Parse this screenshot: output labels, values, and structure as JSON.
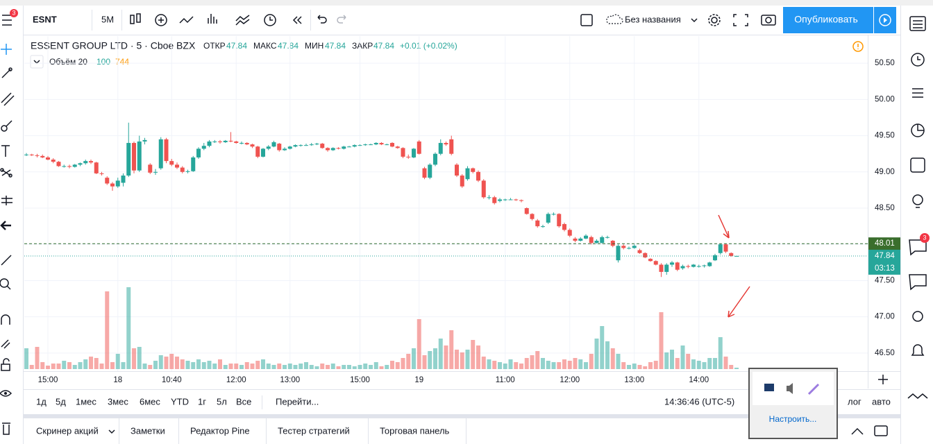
{
  "toolbar": {
    "symbol": "ESNT",
    "interval": "5M",
    "layout_name": "Без названия",
    "publish": "Опубликовать"
  },
  "badges": {
    "left": "3",
    "right": "3"
  },
  "legend": {
    "name": "ESSENT GROUP LTD · 5 · Cboe BZX",
    "open_label": "ОТКР",
    "open": "47.84",
    "high_label": "МАКС",
    "high": "47.84",
    "low_label": "МИН",
    "low": "47.84",
    "close_label": "ЗАКР",
    "close": "47.84",
    "change": "+0.01 (+0.02%)",
    "volume_name": "Объём 20",
    "volume_value": "100",
    "volume_ma": "744"
  },
  "chart_data": {
    "type": "candlestick",
    "up_color": "#26a69a",
    "down_color": "#ef5350",
    "ylim": [
      46.25,
      50.875
    ],
    "yticks": [
      {
        "value": 46.5,
        "label": "46.50"
      },
      {
        "value": 47,
        "label": "47.00"
      },
      {
        "value": 47.5,
        "label": "47.50"
      },
      {
        "value": 48,
        "label": "48.00"
      },
      {
        "value": 48.5,
        "label": "48.50"
      },
      {
        "value": 49,
        "label": "49.00"
      },
      {
        "value": 49.5,
        "label": "49.50"
      },
      {
        "value": 50,
        "label": "50.00"
      },
      {
        "value": 50.5,
        "label": "50.50"
      }
    ],
    "grid": true,
    "volume_ylim": [
      0,
      130
    ],
    "high_line": {
      "value": 48.01,
      "label": "48.01"
    },
    "last_price": {
      "value": 47.84,
      "label": "47.84"
    },
    "countdown": "03:13",
    "categories": [
      null,
      null,
      null,
      null,
      "15:00",
      null,
      null,
      null,
      null,
      null,
      null,
      null,
      null,
      null,
      null,
      null,
      null,
      "18",
      null,
      null,
      null,
      null,
      null,
      null,
      null,
      null,
      null,
      "10:40",
      null,
      null,
      null,
      null,
      null,
      null,
      null,
      null,
      null,
      null,
      null,
      "12:00",
      null,
      null,
      null,
      null,
      null,
      null,
      null,
      null,
      null,
      "13:00",
      null,
      null,
      null,
      null,
      null,
      null,
      null,
      null,
      null,
      null,
      null,
      null,
      "15:00",
      null,
      null,
      null,
      null,
      null,
      null,
      null,
      null,
      null,
      null,
      "19",
      null,
      null,
      null,
      null,
      null,
      null,
      null,
      null,
      null,
      null,
      null,
      null,
      null,
      null,
      null,
      "11:00",
      null,
      null,
      null,
      null,
      null,
      null,
      null,
      null,
      null,
      null,
      null,
      "12:00",
      null,
      null,
      null,
      null,
      null,
      null,
      null,
      null,
      null,
      null,
      null,
      "13:00",
      null,
      null,
      null,
      null,
      null,
      null,
      null,
      null,
      null,
      null,
      null,
      "14:00",
      null,
      null,
      null,
      null,
      null,
      null,
      null
    ],
    "candles": [
      [
        49.24,
        49.26,
        49.22,
        49.24
      ],
      [
        49.24,
        49.25,
        49.22,
        49.23
      ],
      [
        49.23,
        49.25,
        49.2,
        49.22
      ],
      [
        49.22,
        49.24,
        49.19,
        49.2
      ],
      [
        49.2,
        49.22,
        49.16,
        49.17
      ],
      [
        49.17,
        49.19,
        49.12,
        49.14
      ],
      [
        49.14,
        49.15,
        49.07,
        49.08
      ],
      [
        49.08,
        49.1,
        49.06,
        49.08
      ],
      [
        49.08,
        49.1,
        49.05,
        49.07
      ],
      [
        49.07,
        49.11,
        49.06,
        49.1
      ],
      [
        49.1,
        49.13,
        49.08,
        49.12
      ],
      [
        49.12,
        49.17,
        49.1,
        49.15
      ],
      [
        49.15,
        49.17,
        49.11,
        49.13
      ],
      [
        49.13,
        49.14,
        48.97,
        48.98
      ],
      [
        48.98,
        49,
        48.95,
        48.97
      ],
      [
        48.92,
        48.94,
        48.82,
        48.84
      ],
      [
        48.84,
        48.86,
        48.74,
        48.8
      ],
      [
        48.8,
        48.92,
        48.78,
        48.88
      ],
      [
        48.85,
        48.98,
        48.8,
        48.95
      ],
      [
        48.95,
        49.68,
        48.93,
        49.4
      ],
      [
        49.4,
        49.42,
        48.98,
        49.02
      ],
      [
        49.02,
        49.5,
        49,
        49.42
      ],
      [
        49.42,
        49.47,
        49.38,
        49.44
      ],
      [
        49.1,
        49.12,
        48.97,
        48.99
      ],
      [
        48.99,
        49.04,
        48.96,
        49
      ],
      [
        49.05,
        49.48,
        49.03,
        49.45
      ],
      [
        49.45,
        49.47,
        49.12,
        49.15
      ],
      [
        49.15,
        49.18,
        49.08,
        49.1
      ],
      [
        49.1,
        49.13,
        49.04,
        49.06
      ],
      [
        49.06,
        49.08,
        48.98,
        49
      ],
      [
        49,
        49.03,
        48.98,
        49.01
      ],
      [
        49.01,
        49.22,
        49,
        49.2
      ],
      [
        49.2,
        49.34,
        49.18,
        49.32
      ],
      [
        49.32,
        49.4,
        49.3,
        49.36
      ],
      [
        49.36,
        49.44,
        49.34,
        49.42
      ],
      [
        49.42,
        49.44,
        49.4,
        49.42
      ],
      [
        49.42,
        49.44,
        49.39,
        49.41
      ],
      [
        49.41,
        49.44,
        49.4,
        49.43
      ],
      [
        49.43,
        49.55,
        49.41,
        49.42
      ],
      [
        49.42,
        49.43,
        49.39,
        49.4
      ],
      [
        49.4,
        49.42,
        49.38,
        49.4
      ],
      [
        49.4,
        49.41,
        49.37,
        49.38
      ],
      [
        49.38,
        49.39,
        49.33,
        49.35
      ],
      [
        49.35,
        49.36,
        49.19,
        49.21
      ],
      [
        49.21,
        49.33,
        49.2,
        49.32
      ],
      [
        49.32,
        49.37,
        49.3,
        49.35
      ],
      [
        49.35,
        49.43,
        49.34,
        49.41
      ],
      [
        49.39,
        49.4,
        49.28,
        49.3
      ],
      [
        49.3,
        49.34,
        49.29,
        49.32
      ],
      [
        49.32,
        49.36,
        49.31,
        49.35
      ],
      [
        49.35,
        49.38,
        49.34,
        49.37
      ],
      [
        49.37,
        49.38,
        49.35,
        49.37
      ],
      [
        49.37,
        49.39,
        49.36,
        49.37
      ],
      [
        49.37,
        49.4,
        49.36,
        49.38
      ],
      [
        49.38,
        49.4,
        49.37,
        49.39
      ],
      [
        49.39,
        49.4,
        49.32,
        49.33
      ],
      [
        49.33,
        49.34,
        49.28,
        49.3
      ],
      [
        49.3,
        49.34,
        49.29,
        49.33
      ],
      [
        49.33,
        49.34,
        49.31,
        49.32
      ],
      [
        49.32,
        49.36,
        49.31,
        49.35
      ],
      [
        49.35,
        49.36,
        49.34,
        49.35
      ],
      [
        49.35,
        49.38,
        49.34,
        49.37
      ],
      [
        49.37,
        49.38,
        49.36,
        49.37
      ],
      [
        49.37,
        49.39,
        49.36,
        49.38
      ],
      [
        49.38,
        49.39,
        49.37,
        49.38
      ],
      [
        49.38,
        49.41,
        49.37,
        49.4
      ],
      [
        49.4,
        49.41,
        49.37,
        49.38
      ],
      [
        49.38,
        49.39,
        49.37,
        49.38
      ],
      [
        49.4,
        49.41,
        49.34,
        49.35
      ],
      [
        49.35,
        49.36,
        49.32,
        49.33
      ],
      [
        49.33,
        49.34,
        49.19,
        49.21
      ],
      [
        49.21,
        49.24,
        49.18,
        49.2
      ],
      [
        49.2,
        49.33,
        49.19,
        49.32
      ],
      [
        49.42,
        49.44,
        49.24,
        49.25
      ],
      [
        49.05,
        49.07,
        48.9,
        48.92
      ],
      [
        48.92,
        49.12,
        48.9,
        49.1
      ],
      [
        49.1,
        49.27,
        49.08,
        49.25
      ],
      [
        49.25,
        49.45,
        49.23,
        49.4
      ],
      [
        49.4,
        49.42,
        49.36,
        49.38
      ],
      [
        49.45,
        49.5,
        49.23,
        49.25
      ],
      [
        49.1,
        49.12,
        48.93,
        48.95
      ],
      [
        48.95,
        48.97,
        48.78,
        48.8
      ],
      [
        48.9,
        49.08,
        48.88,
        49.05
      ],
      [
        49.05,
        49.06,
        48.98,
        49
      ],
      [
        49,
        49.02,
        48.86,
        48.88
      ],
      [
        48.88,
        48.9,
        48.63,
        48.65
      ],
      [
        48.65,
        48.68,
        48.62,
        48.65
      ],
      [
        48.65,
        48.67,
        48.55,
        48.57
      ],
      [
        48.6,
        48.64,
        48.58,
        48.62
      ],
      [
        48.62,
        48.63,
        48.6,
        48.62
      ],
      [
        48.62,
        48.64,
        48.61,
        48.62
      ],
      [
        48.62,
        48.63,
        48.6,
        48.61
      ],
      [
        48.61,
        48.62,
        48.58,
        48.6
      ],
      [
        48.5,
        48.51,
        48.41,
        48.42
      ],
      [
        48.42,
        48.43,
        48.33,
        48.35
      ],
      [
        48.33,
        48.35,
        48.23,
        48.25
      ],
      [
        48.25,
        48.27,
        48.23,
        48.25
      ],
      [
        48.3,
        48.44,
        48.28,
        48.42
      ],
      [
        48.42,
        48.44,
        48.4,
        48.42
      ],
      [
        48.42,
        48.43,
        48.23,
        48.25
      ],
      [
        48.28,
        48.3,
        48.18,
        48.2
      ],
      [
        48.2,
        48.22,
        48.1,
        48.12
      ],
      [
        48.08,
        48.1,
        48.03,
        48.05
      ],
      [
        48.05,
        48.1,
        48.04,
        48.08
      ],
      [
        48.08,
        48.14,
        48.07,
        48.12
      ],
      [
        48.1,
        48.12,
        48,
        48.02
      ],
      [
        48.02,
        48.07,
        48.01,
        48.05
      ],
      [
        48.02,
        48.12,
        48.01,
        48.1
      ],
      [
        48.1,
        48.12,
        48.08,
        48.1
      ],
      [
        48.05,
        48.06,
        47.96,
        47.98
      ],
      [
        47.78,
        48,
        47.75,
        47.98
      ],
      [
        47.98,
        48,
        47.93,
        47.95
      ],
      [
        47.95,
        47.97,
        47.93,
        47.95
      ],
      [
        47.95,
        48,
        47.94,
        47.98
      ],
      [
        47.92,
        47.94,
        47.87,
        47.88
      ],
      [
        47.88,
        47.89,
        47.81,
        47.82
      ],
      [
        47.8,
        47.81,
        47.76,
        47.77
      ],
      [
        47.77,
        47.78,
        47.71,
        47.72
      ],
      [
        47.72,
        47.74,
        47.55,
        47.62
      ],
      [
        47.62,
        47.74,
        47.58,
        47.72
      ],
      [
        47.72,
        47.77,
        47.69,
        47.75
      ],
      [
        47.75,
        47.76,
        47.63,
        47.65
      ],
      [
        47.67,
        47.72,
        47.65,
        47.7
      ],
      [
        47.7,
        47.72,
        47.67,
        47.69
      ],
      [
        47.69,
        47.73,
        47.68,
        47.72
      ],
      [
        47.7,
        47.72,
        47.68,
        47.7
      ],
      [
        47.7,
        47.72,
        47.68,
        47.71
      ],
      [
        47.7,
        47.76,
        47.69,
        47.75
      ],
      [
        47.78,
        47.87,
        47.77,
        47.85
      ],
      [
        47.88,
        48.01,
        47.86,
        48
      ],
      [
        48,
        48.01,
        47.88,
        47.9
      ],
      [
        47.88,
        47.89,
        47.83,
        47.84
      ],
      [
        47.84,
        47.84,
        47.84,
        47.84
      ]
    ],
    "volumes": [
      30,
      6,
      32,
      10,
      5,
      8,
      8,
      12,
      10,
      6,
      10,
      14,
      18,
      16,
      8,
      112,
      10,
      22,
      10,
      118,
      30,
      32,
      8,
      6,
      12,
      20,
      18,
      22,
      18,
      14,
      12,
      10,
      14,
      10,
      12,
      8,
      14,
      6,
      8,
      8,
      6,
      10,
      8,
      12,
      14,
      8,
      6,
      8,
      6,
      8,
      6,
      8,
      10,
      6,
      4,
      8,
      6,
      8,
      4,
      6,
      6,
      4,
      6,
      8,
      6,
      10,
      4,
      6,
      12,
      10,
      16,
      22,
      30,
      72,
      20,
      26,
      30,
      44,
      34,
      56,
      28,
      24,
      28,
      42,
      34,
      18,
      14,
      12,
      10,
      8,
      14,
      10,
      8,
      16,
      20,
      26,
      16,
      12,
      10,
      10,
      14,
      12,
      16,
      14,
      10,
      22,
      44,
      62,
      40,
      30,
      22,
      10,
      6,
      8,
      6,
      4,
      10,
      12,
      82,
      24,
      28,
      16,
      34,
      22,
      14,
      12,
      10,
      16,
      16,
      46,
      18,
      6,
      2
    ]
  },
  "ranges": [
    "1д",
    "5д",
    "1мес",
    "3мес",
    "6мес",
    "YTD",
    "1г",
    "5л",
    "Все"
  ],
  "goto": "Перейти...",
  "clock": "14:36:46 (UTC-5)",
  "scale_options": [
    "лог",
    "авто"
  ],
  "bottom_tabs": [
    "Скринер акций",
    "Заметки",
    "Редактор Pine",
    "Тестер стратегий",
    "Торговая панель"
  ],
  "tray": {
    "button": "Настроить..."
  }
}
